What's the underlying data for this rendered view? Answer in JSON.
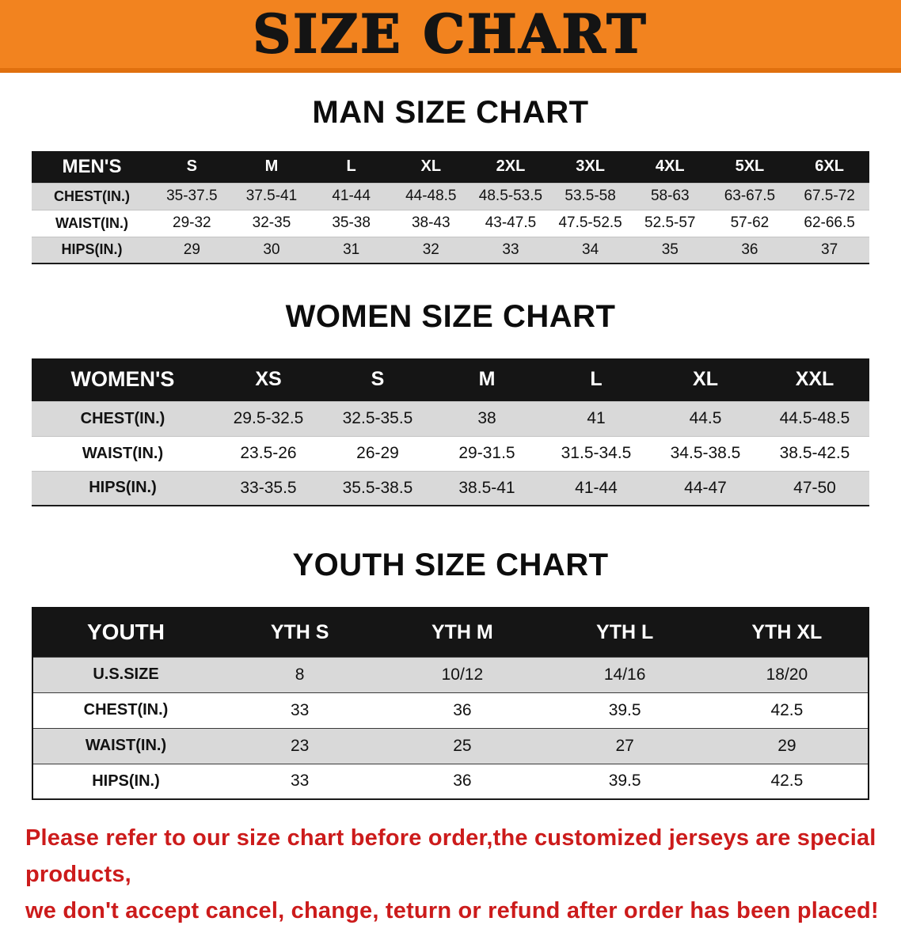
{
  "banner": {
    "title": "SIZE CHART",
    "bg_color": "#f2831f",
    "text_color": "#141414"
  },
  "men": {
    "heading": "MAN SIZE CHART",
    "table": {
      "header": [
        "MEN'S",
        "S",
        "M",
        "L",
        "XL",
        "2XL",
        "3XL",
        "4XL",
        "5XL",
        "6XL"
      ],
      "rows": [
        [
          "CHEST(IN.)",
          "35-37.5",
          "37.5-41",
          "41-44",
          "44-48.5",
          "48.5-53.5",
          "53.5-58",
          "58-63",
          "63-67.5",
          "67.5-72"
        ],
        [
          "WAIST(IN.)",
          "29-32",
          "32-35",
          "35-38",
          "38-43",
          "43-47.5",
          "47.5-52.5",
          "52.5-57",
          "57-62",
          "62-66.5"
        ],
        [
          "HIPS(IN.)",
          "29",
          "30",
          "31",
          "32",
          "33",
          "34",
          "35",
          "36",
          "37"
        ]
      ]
    }
  },
  "women": {
    "heading": "WOMEN SIZE CHART",
    "table": {
      "header": [
        "WOMEN'S",
        "XS",
        "S",
        "M",
        "L",
        "XL",
        "XXL"
      ],
      "rows": [
        [
          "CHEST(IN.)",
          "29.5-32.5",
          "32.5-35.5",
          "38",
          "41",
          "44.5",
          "44.5-48.5"
        ],
        [
          "WAIST(IN.)",
          "23.5-26",
          "26-29",
          "29-31.5",
          "31.5-34.5",
          "34.5-38.5",
          "38.5-42.5"
        ],
        [
          "HIPS(IN.)",
          "33-35.5",
          "35.5-38.5",
          "38.5-41",
          "41-44",
          "44-47",
          "47-50"
        ]
      ]
    }
  },
  "youth": {
    "heading": "YOUTH SIZE CHART",
    "table": {
      "header": [
        "YOUTH",
        "YTH S",
        "YTH M",
        "YTH L",
        "YTH XL"
      ],
      "rows": [
        [
          "U.S.SIZE",
          "8",
          "10/12",
          "14/16",
          "18/20"
        ],
        [
          "CHEST(IN.)",
          "33",
          "36",
          "39.5",
          "42.5"
        ],
        [
          "WAIST(IN.)",
          "23",
          "25",
          "27",
          "29"
        ],
        [
          "HIPS(IN.)",
          "33",
          "36",
          "39.5",
          "42.5"
        ]
      ]
    }
  },
  "footer": {
    "line1": "Please refer to our size chart before order,the customized jerseys are special products,",
    "line2": "we don't accept cancel, change, teturn or refund after order has been placed!",
    "text_color": "#cc1b1b"
  },
  "row_stripe_color": "#d9d9d9",
  "header_bg_color": "#151515"
}
